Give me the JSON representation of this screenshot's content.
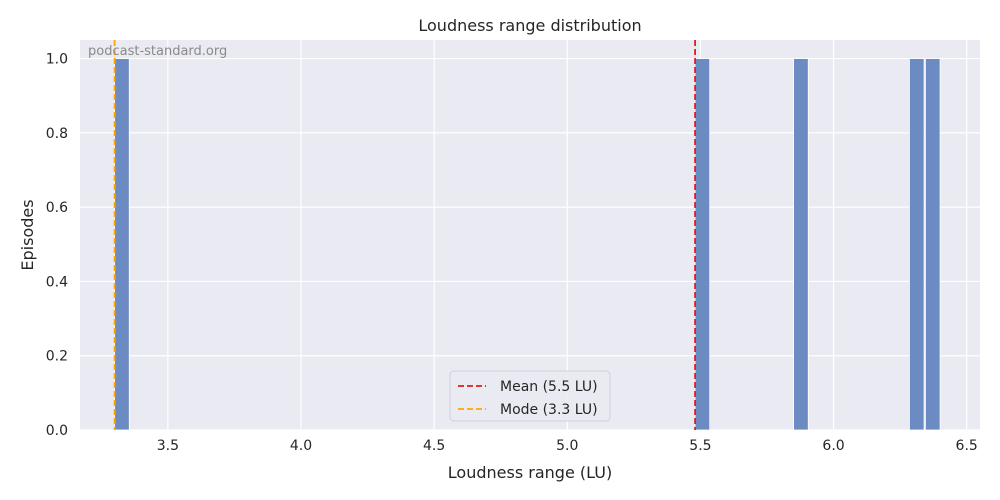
{
  "watermark": "podcast-standard.org",
  "colors": {
    "background": "#eaeaf2",
    "grid": "#ffffff",
    "bar": "#6d8bc3",
    "mean": "#e31a1c",
    "mode": "#ffa500"
  },
  "chart_data": {
    "type": "bar",
    "title": "Loudness range distribution",
    "xlabel": "Loudness range (LU)",
    "ylabel": "Episodes",
    "xlim": [
      3.17,
      6.55
    ],
    "ylim": [
      0,
      1.05
    ],
    "xticks": [
      "3.5",
      "4.0",
      "4.5",
      "5.0",
      "5.5",
      "6.0",
      "6.5"
    ],
    "yticks": [
      "0.0",
      "0.2",
      "0.4",
      "0.6",
      "0.8",
      "1.0"
    ],
    "bin_width": 0.055,
    "bars": [
      {
        "x0": 3.3,
        "x1": 3.355,
        "count": 1
      },
      {
        "x0": 5.48,
        "x1": 5.535,
        "count": 1
      },
      {
        "x0": 5.85,
        "x1": 5.905,
        "count": 1
      },
      {
        "x0": 6.285,
        "x1": 6.34,
        "count": 1
      },
      {
        "x0": 6.345,
        "x1": 6.4,
        "count": 1
      }
    ],
    "reference_lines": [
      {
        "name": "Mean (5.5 LU)",
        "x": 5.48,
        "color": "#e31a1c"
      },
      {
        "name": "Mode (3.3 LU)",
        "x": 3.3,
        "color": "#ffa500"
      }
    ],
    "grid": true,
    "legend_position": "bottom-center"
  }
}
